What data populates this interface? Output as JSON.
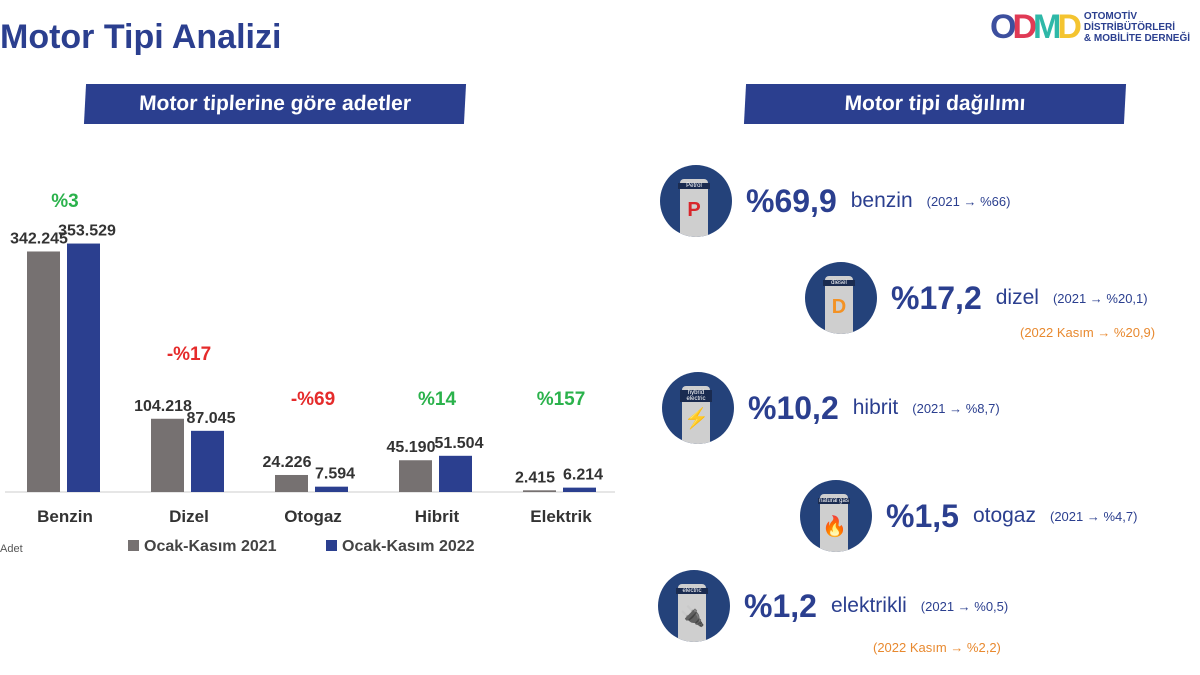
{
  "header": {
    "title": "Motor Tipi Analizi",
    "logo_mark": "ODMD",
    "logo_lines": [
      "OTOMOTİV",
      "DİSTRİBÜTÖRLERİ",
      "& MOBİLİTE DERNEĞİ"
    ]
  },
  "left_banner": "Motor tiplerine göre adetler",
  "right_banner": "Motor tipi dağılımı",
  "chart_data": {
    "type": "bar",
    "categories": [
      "Benzin",
      "Dizel",
      "Otogaz",
      "Hibrit",
      "Elektrik"
    ],
    "series": [
      {
        "name": "Ocak-Kasım 2021",
        "color": "#767171",
        "values": [
          342245,
          104218,
          24226,
          45190,
          2415
        ],
        "labels": [
          "342.245",
          "104.218",
          "24.226",
          "45.190",
          "2.415"
        ]
      },
      {
        "name": "Ocak-Kasım 2022",
        "color": "#2b3f8f",
        "values": [
          353529,
          87045,
          7594,
          51504,
          6214
        ],
        "labels": [
          "353.529",
          "87.045",
          "7.594",
          "51.504",
          "6.214"
        ]
      }
    ],
    "changes": [
      {
        "text": "%3",
        "color": "#2bb24c"
      },
      {
        "text": "-%17",
        "color": "#e52b2b"
      },
      {
        "text": "-%69",
        "color": "#e52b2b"
      },
      {
        "text": "%14",
        "color": "#2bb24c"
      },
      {
        "text": "%157",
        "color": "#2bb24c"
      }
    ],
    "ylabel": "Adet",
    "ylim": [
      0,
      360000
    ]
  },
  "distribution": [
    {
      "icon": "Petrol",
      "letter": "P",
      "letter_color": "#d8262b",
      "pct": "%69,9",
      "name": "benzin",
      "prev": "(2021 → %66)"
    },
    {
      "icon": "diesel",
      "letter": "D",
      "letter_color": "#f39224",
      "pct": "%17,2",
      "name": "dizel",
      "prev": "(2021 → %20,1)",
      "note": "(2022 Kasım → %20,9)"
    },
    {
      "icon": "hybrid electric",
      "letter": "⚡",
      "letter_color": "#7bc043",
      "pct": "%10,2",
      "name": "hibrit",
      "prev": "(2021 → %8,7)"
    },
    {
      "icon": "natural gas",
      "letter": "🔥",
      "letter_color": "#7fd3d3",
      "pct": "%1,5",
      "name": "otogaz",
      "prev": "(2021 → %4,7)"
    },
    {
      "icon": "electric",
      "letter": "🔌",
      "letter_color": "#7fd3d3",
      "pct": "%1,2",
      "name": "elektrikli",
      "prev": "(2021 → %0,5)",
      "note": "(2022 Kasım → %2,2)"
    }
  ]
}
